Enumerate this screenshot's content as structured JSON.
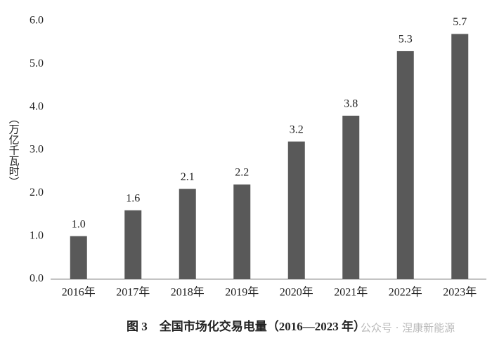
{
  "chart_data": {
    "type": "bar",
    "title": "图 3　全国市场化交易电量（2016—2023 年）",
    "y_label": "（万亿千瓦时）",
    "watermark": "公众号 · 涅康新能源",
    "categories": [
      "2016年",
      "2017年",
      "2018年",
      "2019年",
      "2020年",
      "2021年",
      "2022年",
      "2023年"
    ],
    "values": [
      1.0,
      1.6,
      2.1,
      2.2,
      3.2,
      3.8,
      5.3,
      5.7
    ],
    "value_labels": [
      "1.0",
      "1.6",
      "2.1",
      "2.2",
      "3.2",
      "3.8",
      "5.3",
      "5.7"
    ],
    "color": "#595959",
    "ylim": [
      0,
      6
    ],
    "yticks": [
      {
        "value": 0,
        "label": "0.0"
      },
      {
        "value": 1,
        "label": "1.0"
      },
      {
        "value": 2,
        "label": "2.0"
      },
      {
        "value": 3,
        "label": "3.0"
      },
      {
        "value": 4,
        "label": "4.0"
      },
      {
        "value": 5,
        "label": "5.0"
      },
      {
        "value": 6,
        "label": "6.0"
      }
    ],
    "grid": false
  }
}
